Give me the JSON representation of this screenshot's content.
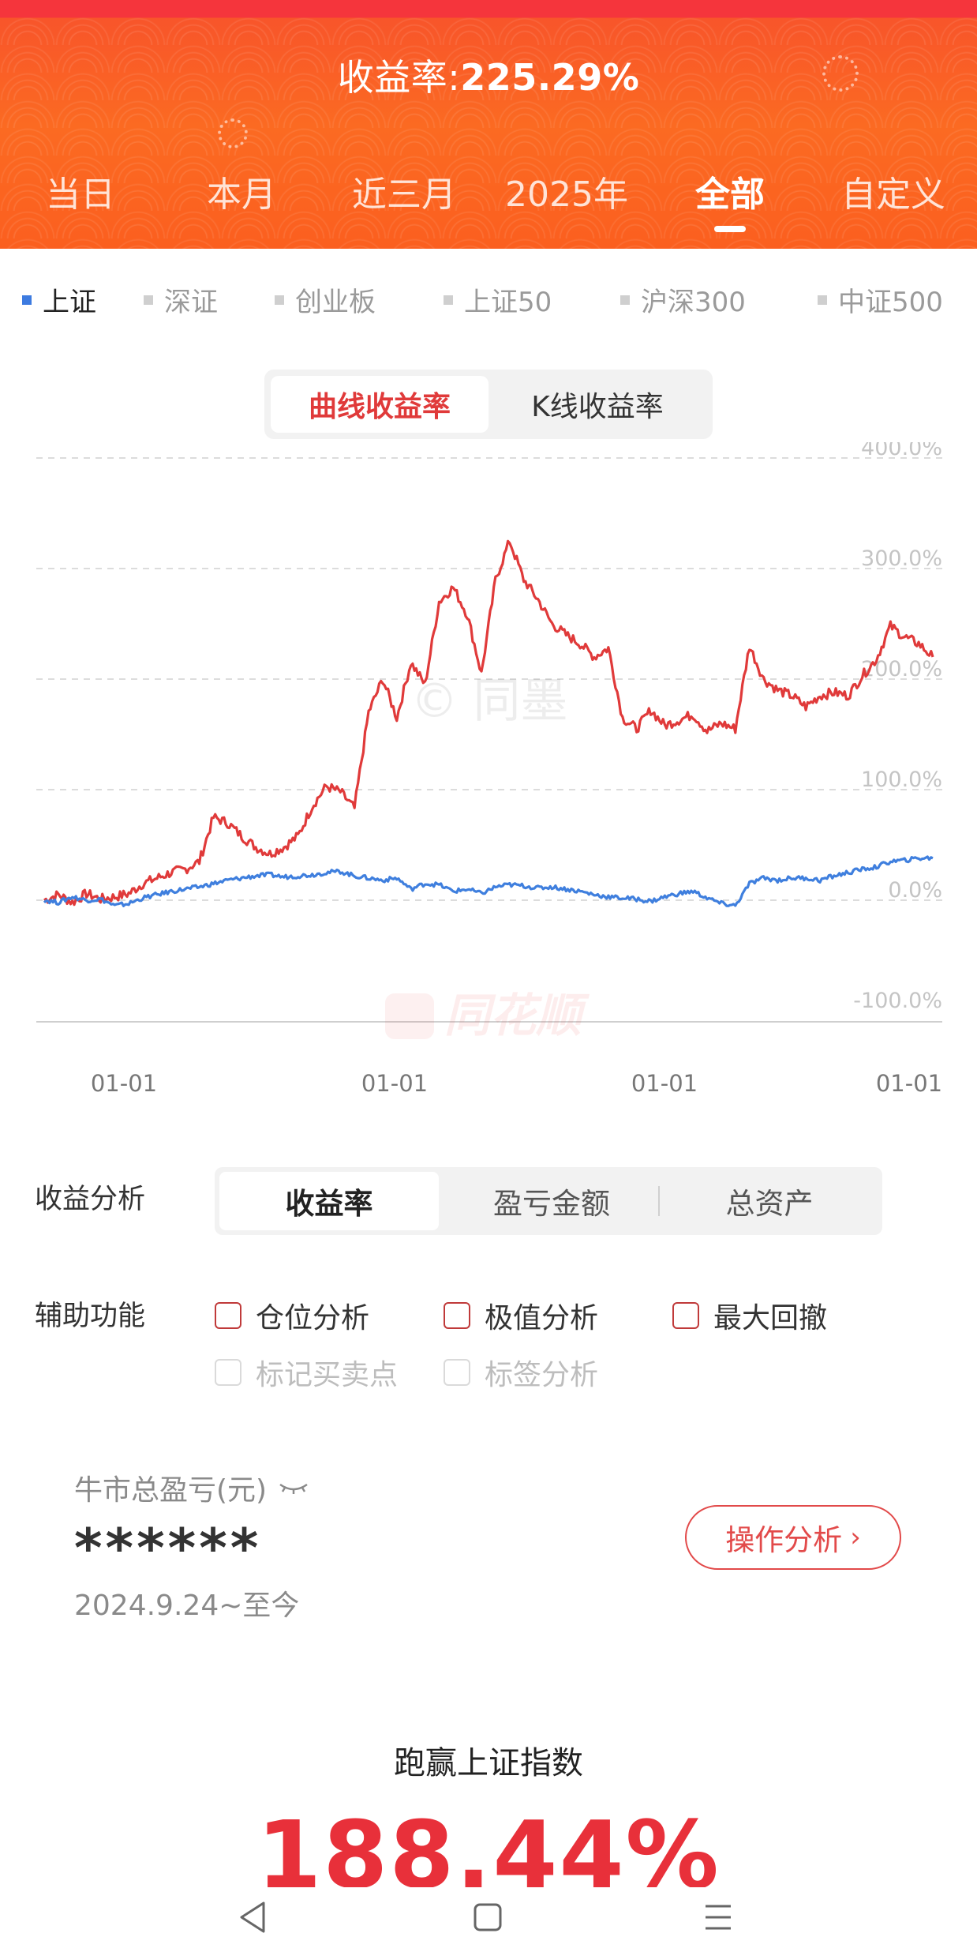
{
  "header": {
    "title_label": "收益率:",
    "title_value": "225.29%",
    "tabs": [
      "当日",
      "本月",
      "近三月",
      "2025年",
      "全部",
      "自定义"
    ],
    "active_tab": "全部"
  },
  "indices": [
    {
      "label": "上证",
      "active": true
    },
    {
      "label": "深证",
      "active": false
    },
    {
      "label": "创业板",
      "active": false
    },
    {
      "label": "上证50",
      "active": false
    },
    {
      "label": "沪深300",
      "active": false
    },
    {
      "label": "中证500",
      "active": false
    }
  ],
  "chart_toggle": {
    "active": "曲线收益率",
    "inactive": "K线收益率"
  },
  "chart_data": {
    "type": "line",
    "ylim": [
      -100,
      400
    ],
    "y_tick_labels": [
      "400.0%",
      "300.0%",
      "200.0%",
      "100.0%",
      "0.0%",
      "-100.0%"
    ],
    "x_tick_labels": [
      "01-01",
      "01-01",
      "01-01",
      "01-01"
    ],
    "watermarks": [
      "© 同墨",
      "同花顺"
    ],
    "colors": {
      "series_1": "#e03a3a",
      "series_2": "#3f7fde"
    },
    "grid": true,
    "series": [
      {
        "values": [
          0,
          5,
          -2,
          6,
          1,
          3,
          6,
          15,
          20,
          25,
          28,
          35,
          75,
          70,
          58,
          48,
          42,
          48,
          58,
          85,
          103,
          98,
          83,
          170,
          200,
          165,
          215,
          195,
          270,
          283,
          258,
          205,
          290,
          325,
          290,
          272,
          250,
          240,
          232,
          220,
          228,
          165,
          155,
          172,
          158,
          163,
          168,
          153,
          160,
          155,
          230,
          200,
          190,
          185,
          175,
          185,
          188,
          185,
          203,
          218,
          248,
          238,
          232,
          220
        ]
      },
      {
        "values": [
          0,
          -2,
          3,
          0,
          1,
          -5,
          -3,
          2,
          5,
          8,
          10,
          12,
          15,
          18,
          20,
          22,
          23,
          21,
          22,
          23,
          25,
          26,
          22,
          20,
          18,
          20,
          10,
          15,
          14,
          8,
          10,
          6,
          12,
          14,
          13,
          11,
          12,
          10,
          8,
          5,
          3,
          2,
          1,
          -1,
          3,
          6,
          8,
          2,
          -3,
          -5,
          15,
          20,
          18,
          20,
          20,
          18,
          22,
          25,
          28,
          30,
          35,
          36,
          38,
          38
        ]
      }
    ]
  },
  "analysis": {
    "label": "收益分析",
    "options": [
      "收益率",
      "盈亏金额",
      "总资产"
    ],
    "active": "收益率"
  },
  "aux": {
    "label": "辅助功能",
    "options": [
      "仓位分析",
      "极值分析",
      "最大回撤"
    ],
    "disabled_options": [
      "标记买卖点",
      "标签分析"
    ]
  },
  "pl": {
    "title": "牛市总盈亏(元)",
    "value": "******",
    "date_range": "2024.9.24~至今",
    "button_label": "操作分析"
  },
  "beat": {
    "title": "跑赢上证指数",
    "value": "188.44%"
  }
}
